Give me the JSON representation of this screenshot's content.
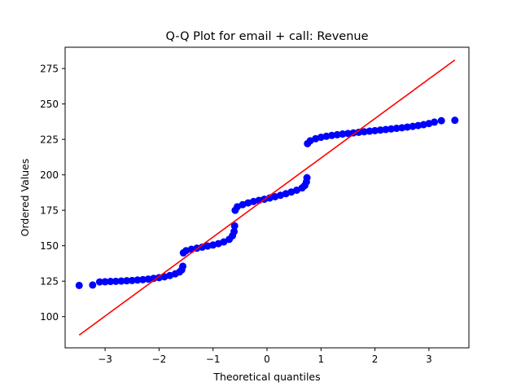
{
  "chart_data": {
    "type": "scatter",
    "title": "Q-Q Plot for email + call: Revenue",
    "xlabel": "Theoretical quantiles",
    "ylabel": "Ordered Values",
    "xlim": [
      -3.74,
      3.74
    ],
    "ylim": [
      78,
      290
    ],
    "xticks": [
      -3,
      -2,
      -1,
      0,
      1,
      2,
      3
    ],
    "xtick_labels": [
      "−3",
      "−2",
      "−1",
      "0",
      "1",
      "2",
      "3"
    ],
    "yticks": [
      100,
      125,
      150,
      175,
      200,
      225,
      250,
      275
    ],
    "ytick_labels": [
      "100",
      "125",
      "150",
      "175",
      "200",
      "225",
      "250",
      "275"
    ],
    "grid": false,
    "marker_color": "#0000ff",
    "line_color": "#ff0000",
    "fit_line": {
      "x": [
        -3.48,
        3.48
      ],
      "y": [
        87,
        281
      ]
    },
    "points": [
      [
        -3.48,
        122.0
      ],
      [
        -3.23,
        122.3
      ],
      [
        -3.1,
        124.5
      ],
      [
        -3.0,
        124.6
      ],
      [
        -2.9,
        124.8
      ],
      [
        -2.8,
        124.9
      ],
      [
        -2.7,
        125.1
      ],
      [
        -2.6,
        125.3
      ],
      [
        -2.5,
        125.5
      ],
      [
        -2.4,
        125.8
      ],
      [
        -2.3,
        126.1
      ],
      [
        -2.2,
        126.5
      ],
      [
        -2.1,
        127.0
      ],
      [
        -2.0,
        127.5
      ],
      [
        -1.9,
        128.1
      ],
      [
        -1.8,
        129.0
      ],
      [
        -1.7,
        130.2
      ],
      [
        -1.62,
        131.5
      ],
      [
        -1.58,
        133.0
      ],
      [
        -1.56,
        135.5
      ],
      [
        -1.55,
        145.0
      ],
      [
        -1.5,
        146.5
      ],
      [
        -1.4,
        147.5
      ],
      [
        -1.3,
        148.3
      ],
      [
        -1.2,
        149.0
      ],
      [
        -1.1,
        149.8
      ],
      [
        -1.0,
        150.5
      ],
      [
        -0.9,
        151.5
      ],
      [
        -0.8,
        152.7
      ],
      [
        -0.7,
        154.5
      ],
      [
        -0.64,
        157.0
      ],
      [
        -0.61,
        160.0
      ],
      [
        -0.6,
        164.0
      ],
      [
        -0.59,
        175.0
      ],
      [
        -0.55,
        177.5
      ],
      [
        -0.45,
        179.0
      ],
      [
        -0.35,
        180.2
      ],
      [
        -0.25,
        181.2
      ],
      [
        -0.15,
        182.0
      ],
      [
        -0.05,
        182.8
      ],
      [
        0.05,
        183.7
      ],
      [
        0.15,
        184.6
      ],
      [
        0.25,
        185.6
      ],
      [
        0.35,
        186.7
      ],
      [
        0.45,
        187.9
      ],
      [
        0.55,
        189.2
      ],
      [
        0.65,
        190.8
      ],
      [
        0.7,
        192.5
      ],
      [
        0.73,
        195.0
      ],
      [
        0.74,
        198.0
      ],
      [
        0.75,
        222.0
      ],
      [
        0.8,
        224.0
      ],
      [
        0.9,
        225.5
      ],
      [
        1.0,
        226.5
      ],
      [
        1.1,
        227.2
      ],
      [
        1.2,
        227.8
      ],
      [
        1.3,
        228.3
      ],
      [
        1.4,
        228.8
      ],
      [
        1.5,
        229.2
      ],
      [
        1.6,
        229.6
      ],
      [
        1.7,
        230.0
      ],
      [
        1.8,
        230.4
      ],
      [
        1.9,
        230.8
      ],
      [
        2.0,
        231.2
      ],
      [
        2.1,
        231.6
      ],
      [
        2.2,
        232.0
      ],
      [
        2.3,
        232.4
      ],
      [
        2.4,
        232.8
      ],
      [
        2.5,
        233.2
      ],
      [
        2.6,
        233.7
      ],
      [
        2.7,
        234.2
      ],
      [
        2.8,
        234.8
      ],
      [
        2.9,
        235.4
      ],
      [
        3.0,
        236.2
      ],
      [
        3.1,
        237.2
      ],
      [
        3.23,
        238.2
      ],
      [
        3.48,
        238.5
      ]
    ]
  }
}
